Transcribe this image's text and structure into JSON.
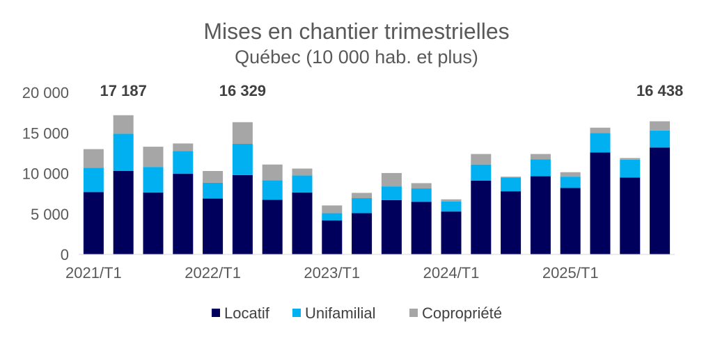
{
  "chart_data": {
    "type": "bar",
    "stacked": true,
    "title": "Mises en chantier trimestrielles",
    "subtitle": "Québec (10 000 hab. et plus)",
    "ylim": [
      0,
      20000
    ],
    "y_ticks": [
      "0",
      "5 000",
      "10 000",
      "15 000",
      "20 000"
    ],
    "y_tick_values": [
      0,
      5000,
      10000,
      15000,
      20000
    ],
    "x_tick_labels": [
      {
        "label": "2021/T1",
        "index": 0
      },
      {
        "label": "2022/T1",
        "index": 4
      },
      {
        "label": "2023/T1",
        "index": 8
      },
      {
        "label": "2024/T1",
        "index": 12
      },
      {
        "label": "2025/T1",
        "index": 16
      }
    ],
    "categories": [
      "2021/T1",
      "2021/T2",
      "2021/T3",
      "2021/T4",
      "2022/T1",
      "2022/T2",
      "2022/T3",
      "2022/T4",
      "2023/T1",
      "2023/T2",
      "2023/T3",
      "2023/T4",
      "2024/T1",
      "2024/T2",
      "2024/T3",
      "2024/T4",
      "2025/T1",
      "2025/T2",
      "2025/T3",
      "2025/T4"
    ],
    "series": [
      {
        "name": "Locatif",
        "color": "#00005c",
        "values": [
          7700,
          10300,
          7650,
          9950,
          6900,
          9800,
          6750,
          7650,
          4200,
          5100,
          6700,
          6500,
          5300,
          9100,
          7800,
          9650,
          8200,
          12600,
          9500,
          13200
        ]
      },
      {
        "name": "Unifamilial",
        "color": "#00b0f0",
        "values": [
          3000,
          4600,
          3150,
          2800,
          1950,
          3850,
          2400,
          2100,
          900,
          1850,
          1700,
          1650,
          1250,
          2000,
          1700,
          2100,
          1400,
          2400,
          2200,
          2100
        ]
      },
      {
        "name": "Copropriété",
        "color": "#a6a6a6",
        "values": [
          2300,
          2287,
          2500,
          950,
          1450,
          2679,
          1950,
          850,
          950,
          650,
          1650,
          650,
          250,
          1300,
          100,
          650,
          550,
          650,
          200,
          1138
        ]
      }
    ],
    "annotations": [
      {
        "text": "17 187",
        "index": 1
      },
      {
        "text": "16 329",
        "index": 5
      },
      {
        "text": "16 438",
        "index": 19
      }
    ],
    "legend": {
      "position": "bottom",
      "entries": [
        "Locatif",
        "Unifamilial",
        "Copropriété"
      ]
    }
  }
}
